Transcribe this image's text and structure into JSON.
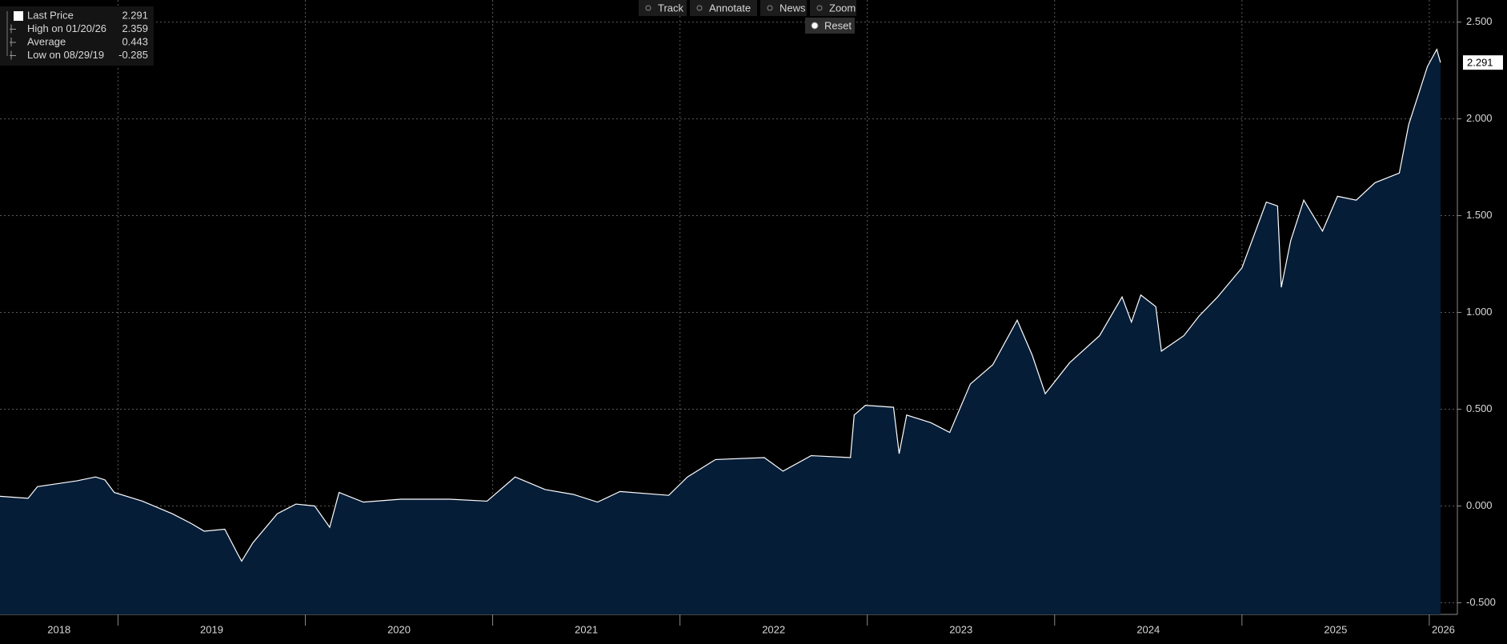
{
  "chart_data": {
    "type": "area",
    "toolbar": [
      "Track",
      "Annotate",
      "News",
      "Zoom",
      "Reset"
    ],
    "info_panel": [
      {
        "label": "Last Price",
        "value": 2.291
      },
      {
        "label": "High on 01/20/26",
        "value": 2.359
      },
      {
        "label": "Average",
        "value": 0.443
      },
      {
        "label": "Low on 08/29/19",
        "value": -0.285
      }
    ],
    "color": "#ffffff",
    "fill": "#061d38",
    "grid": true,
    "x": [
      2018.37,
      2018.52,
      2018.57,
      2018.78,
      2018.88,
      2018.93,
      2018.98,
      2019.13,
      2019.29,
      2019.39,
      2019.46,
      2019.57,
      2019.64,
      2019.66,
      2019.72,
      2019.85,
      2019.95,
      2020.05,
      2020.13,
      2020.18,
      2020.31,
      2020.51,
      2020.77,
      2020.97,
      2021.12,
      2021.28,
      2021.43,
      2021.56,
      2021.68,
      2021.94,
      2022.04,
      2022.19,
      2022.45,
      2022.55,
      2022.7,
      2022.91,
      2022.93,
      2022.99,
      2023.14,
      2023.17,
      2023.21,
      2023.34,
      2023.44,
      2023.55,
      2023.67,
      2023.8,
      2023.88,
      2023.95,
      2024.08,
      2024.24,
      2024.36,
      2024.41,
      2024.46,
      2024.54,
      2024.57,
      2024.69,
      2024.77,
      2024.87,
      2025.0,
      2025.13,
      2025.19,
      2025.21,
      2025.26,
      2025.33,
      2025.43,
      2025.51,
      2025.61,
      2025.71,
      2025.84,
      2025.89,
      2025.94,
      2025.99,
      2026.04,
      2026.06
    ],
    "values": [
      0.05,
      0.04,
      0.1,
      0.13,
      0.15,
      0.135,
      0.07,
      0.025,
      -0.04,
      -0.09,
      -0.13,
      -0.12,
      -0.25,
      -0.285,
      -0.19,
      -0.04,
      0.01,
      0.0,
      -0.11,
      0.07,
      0.02,
      0.035,
      0.035,
      0.025,
      0.15,
      0.085,
      0.06,
      0.02,
      0.075,
      0.055,
      0.15,
      0.24,
      0.25,
      0.18,
      0.26,
      0.25,
      0.47,
      0.52,
      0.51,
      0.27,
      0.47,
      0.43,
      0.38,
      0.63,
      0.73,
      0.96,
      0.78,
      0.58,
      0.74,
      0.88,
      1.08,
      0.95,
      1.09,
      1.03,
      0.8,
      0.88,
      0.98,
      1.08,
      1.23,
      1.57,
      1.55,
      1.13,
      1.37,
      1.58,
      1.42,
      1.6,
      1.58,
      1.67,
      1.72,
      1.97,
      2.12,
      2.27,
      2.359,
      2.291
    ],
    "xlim": [
      2018.37,
      2026.15
    ],
    "xticks": [
      {
        "value": 2018,
        "label": "2018"
      },
      {
        "value": 2019,
        "label": "2019"
      },
      {
        "value": 2020,
        "label": "2020"
      },
      {
        "value": 2021,
        "label": "2021"
      },
      {
        "value": 2022,
        "label": "2022"
      },
      {
        "value": 2023,
        "label": "2023"
      },
      {
        "value": 2024,
        "label": "2024"
      },
      {
        "value": 2025,
        "label": "2025"
      },
      {
        "value": 2026,
        "label": "2026"
      }
    ],
    "ylim": [
      -0.56,
      2.614
    ],
    "yticks": [
      {
        "value": -0.5,
        "label": "-0.500"
      },
      {
        "value": 0,
        "label": "0.000"
      },
      {
        "value": 0.5,
        "label": "0.500"
      },
      {
        "value": 1,
        "label": "1.000"
      },
      {
        "value": 1.5,
        "label": "1.500"
      },
      {
        "value": 2,
        "label": "2.000"
      },
      {
        "value": 2.5,
        "label": "2.500"
      }
    ]
  }
}
